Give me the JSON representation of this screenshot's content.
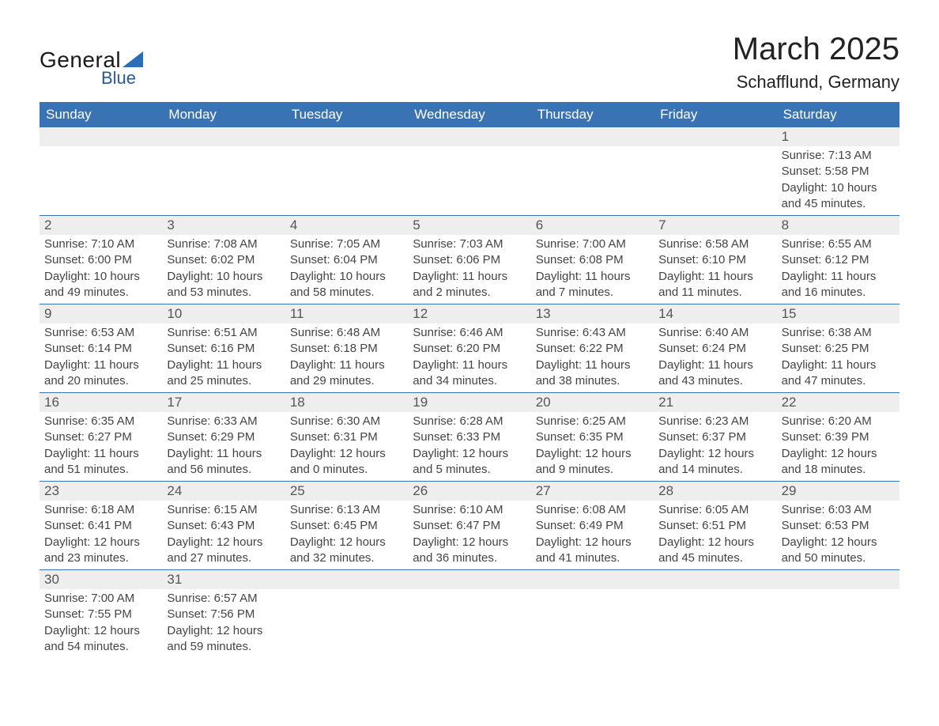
{
  "brand": {
    "word1": "General",
    "word2": "Blue",
    "accent_color": "#2a6db8",
    "text_color": "#1a1a1a"
  },
  "title": "March 2025",
  "location": "Schafflund, Germany",
  "colors": {
    "header_bg": "#3a73b4",
    "header_text": "#ffffff",
    "daynum_bg": "#eeeeee",
    "row_divider": "#3a73b4",
    "body_text": "#444444",
    "background": "#ffffff"
  },
  "typography": {
    "title_fontsize": 40,
    "location_fontsize": 22,
    "dayheader_fontsize": 17,
    "daynum_fontsize": 17,
    "info_fontsize": 15,
    "font_family": "Arial"
  },
  "day_names": [
    "Sunday",
    "Monday",
    "Tuesday",
    "Wednesday",
    "Thursday",
    "Friday",
    "Saturday"
  ],
  "weeks": [
    [
      null,
      null,
      null,
      null,
      null,
      null,
      {
        "d": "1",
        "sr": "Sunrise: 7:13 AM",
        "ss": "Sunset: 5:58 PM",
        "dl1": "Daylight: 10 hours",
        "dl2": "and 45 minutes."
      }
    ],
    [
      {
        "d": "2",
        "sr": "Sunrise: 7:10 AM",
        "ss": "Sunset: 6:00 PM",
        "dl1": "Daylight: 10 hours",
        "dl2": "and 49 minutes."
      },
      {
        "d": "3",
        "sr": "Sunrise: 7:08 AM",
        "ss": "Sunset: 6:02 PM",
        "dl1": "Daylight: 10 hours",
        "dl2": "and 53 minutes."
      },
      {
        "d": "4",
        "sr": "Sunrise: 7:05 AM",
        "ss": "Sunset: 6:04 PM",
        "dl1": "Daylight: 10 hours",
        "dl2": "and 58 minutes."
      },
      {
        "d": "5",
        "sr": "Sunrise: 7:03 AM",
        "ss": "Sunset: 6:06 PM",
        "dl1": "Daylight: 11 hours",
        "dl2": "and 2 minutes."
      },
      {
        "d": "6",
        "sr": "Sunrise: 7:00 AM",
        "ss": "Sunset: 6:08 PM",
        "dl1": "Daylight: 11 hours",
        "dl2": "and 7 minutes."
      },
      {
        "d": "7",
        "sr": "Sunrise: 6:58 AM",
        "ss": "Sunset: 6:10 PM",
        "dl1": "Daylight: 11 hours",
        "dl2": "and 11 minutes."
      },
      {
        "d": "8",
        "sr": "Sunrise: 6:55 AM",
        "ss": "Sunset: 6:12 PM",
        "dl1": "Daylight: 11 hours",
        "dl2": "and 16 minutes."
      }
    ],
    [
      {
        "d": "9",
        "sr": "Sunrise: 6:53 AM",
        "ss": "Sunset: 6:14 PM",
        "dl1": "Daylight: 11 hours",
        "dl2": "and 20 minutes."
      },
      {
        "d": "10",
        "sr": "Sunrise: 6:51 AM",
        "ss": "Sunset: 6:16 PM",
        "dl1": "Daylight: 11 hours",
        "dl2": "and 25 minutes."
      },
      {
        "d": "11",
        "sr": "Sunrise: 6:48 AM",
        "ss": "Sunset: 6:18 PM",
        "dl1": "Daylight: 11 hours",
        "dl2": "and 29 minutes."
      },
      {
        "d": "12",
        "sr": "Sunrise: 6:46 AM",
        "ss": "Sunset: 6:20 PM",
        "dl1": "Daylight: 11 hours",
        "dl2": "and 34 minutes."
      },
      {
        "d": "13",
        "sr": "Sunrise: 6:43 AM",
        "ss": "Sunset: 6:22 PM",
        "dl1": "Daylight: 11 hours",
        "dl2": "and 38 minutes."
      },
      {
        "d": "14",
        "sr": "Sunrise: 6:40 AM",
        "ss": "Sunset: 6:24 PM",
        "dl1": "Daylight: 11 hours",
        "dl2": "and 43 minutes."
      },
      {
        "d": "15",
        "sr": "Sunrise: 6:38 AM",
        "ss": "Sunset: 6:25 PM",
        "dl1": "Daylight: 11 hours",
        "dl2": "and 47 minutes."
      }
    ],
    [
      {
        "d": "16",
        "sr": "Sunrise: 6:35 AM",
        "ss": "Sunset: 6:27 PM",
        "dl1": "Daylight: 11 hours",
        "dl2": "and 51 minutes."
      },
      {
        "d": "17",
        "sr": "Sunrise: 6:33 AM",
        "ss": "Sunset: 6:29 PM",
        "dl1": "Daylight: 11 hours",
        "dl2": "and 56 minutes."
      },
      {
        "d": "18",
        "sr": "Sunrise: 6:30 AM",
        "ss": "Sunset: 6:31 PM",
        "dl1": "Daylight: 12 hours",
        "dl2": "and 0 minutes."
      },
      {
        "d": "19",
        "sr": "Sunrise: 6:28 AM",
        "ss": "Sunset: 6:33 PM",
        "dl1": "Daylight: 12 hours",
        "dl2": "and 5 minutes."
      },
      {
        "d": "20",
        "sr": "Sunrise: 6:25 AM",
        "ss": "Sunset: 6:35 PM",
        "dl1": "Daylight: 12 hours",
        "dl2": "and 9 minutes."
      },
      {
        "d": "21",
        "sr": "Sunrise: 6:23 AM",
        "ss": "Sunset: 6:37 PM",
        "dl1": "Daylight: 12 hours",
        "dl2": "and 14 minutes."
      },
      {
        "d": "22",
        "sr": "Sunrise: 6:20 AM",
        "ss": "Sunset: 6:39 PM",
        "dl1": "Daylight: 12 hours",
        "dl2": "and 18 minutes."
      }
    ],
    [
      {
        "d": "23",
        "sr": "Sunrise: 6:18 AM",
        "ss": "Sunset: 6:41 PM",
        "dl1": "Daylight: 12 hours",
        "dl2": "and 23 minutes."
      },
      {
        "d": "24",
        "sr": "Sunrise: 6:15 AM",
        "ss": "Sunset: 6:43 PM",
        "dl1": "Daylight: 12 hours",
        "dl2": "and 27 minutes."
      },
      {
        "d": "25",
        "sr": "Sunrise: 6:13 AM",
        "ss": "Sunset: 6:45 PM",
        "dl1": "Daylight: 12 hours",
        "dl2": "and 32 minutes."
      },
      {
        "d": "26",
        "sr": "Sunrise: 6:10 AM",
        "ss": "Sunset: 6:47 PM",
        "dl1": "Daylight: 12 hours",
        "dl2": "and 36 minutes."
      },
      {
        "d": "27",
        "sr": "Sunrise: 6:08 AM",
        "ss": "Sunset: 6:49 PM",
        "dl1": "Daylight: 12 hours",
        "dl2": "and 41 minutes."
      },
      {
        "d": "28",
        "sr": "Sunrise: 6:05 AM",
        "ss": "Sunset: 6:51 PM",
        "dl1": "Daylight: 12 hours",
        "dl2": "and 45 minutes."
      },
      {
        "d": "29",
        "sr": "Sunrise: 6:03 AM",
        "ss": "Sunset: 6:53 PM",
        "dl1": "Daylight: 12 hours",
        "dl2": "and 50 minutes."
      }
    ],
    [
      {
        "d": "30",
        "sr": "Sunrise: 7:00 AM",
        "ss": "Sunset: 7:55 PM",
        "dl1": "Daylight: 12 hours",
        "dl2": "and 54 minutes."
      },
      {
        "d": "31",
        "sr": "Sunrise: 6:57 AM",
        "ss": "Sunset: 7:56 PM",
        "dl1": "Daylight: 12 hours",
        "dl2": "and 59 minutes."
      },
      null,
      null,
      null,
      null,
      null
    ]
  ]
}
